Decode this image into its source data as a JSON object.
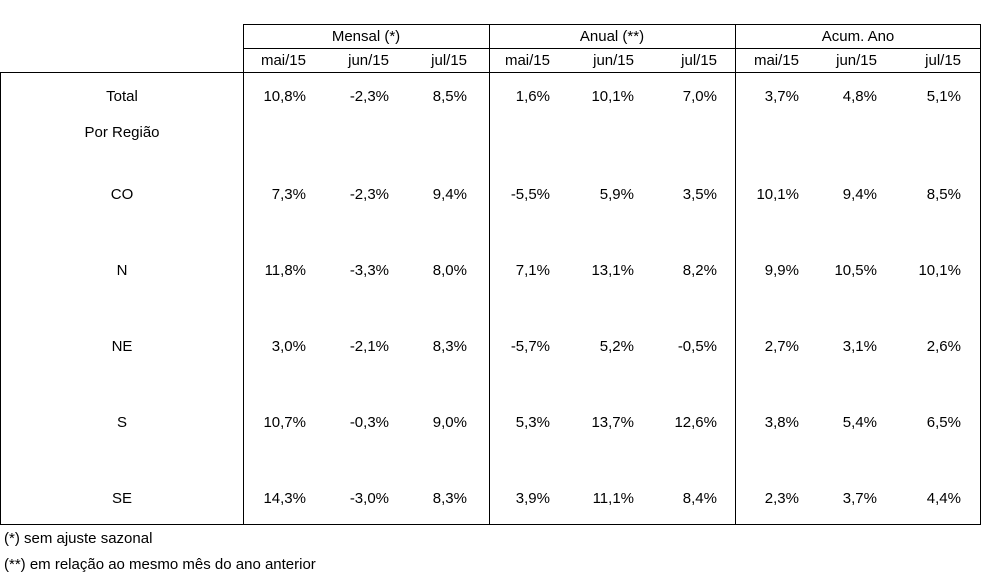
{
  "groups": [
    {
      "label": "Mensal (*)",
      "months": [
        "mai/15",
        "jun/15",
        "jul/15"
      ]
    },
    {
      "label": "Anual (**)",
      "months": [
        "mai/15",
        "jun/15",
        "jul/15"
      ]
    },
    {
      "label": "Acum. Ano",
      "months": [
        "mai/15",
        "jun/15",
        "jul/15"
      ]
    }
  ],
  "section_label": "Por Região",
  "rows": [
    {
      "label": "Total",
      "values": [
        "10,8%",
        "-2,3%",
        "8,5%",
        "1,6%",
        "10,1%",
        "7,0%",
        "3,7%",
        "4,8%",
        "5,1%"
      ]
    },
    {
      "label": "CO",
      "values": [
        "7,3%",
        "-2,3%",
        "9,4%",
        "-5,5%",
        "5,9%",
        "3,5%",
        "10,1%",
        "9,4%",
        "8,5%"
      ]
    },
    {
      "label": "N",
      "values": [
        "11,8%",
        "-3,3%",
        "8,0%",
        "7,1%",
        "13,1%",
        "8,2%",
        "9,9%",
        "10,5%",
        "10,1%"
      ]
    },
    {
      "label": "NE",
      "values": [
        "3,0%",
        "-2,1%",
        "8,3%",
        "-5,7%",
        "5,2%",
        "-0,5%",
        "2,7%",
        "3,1%",
        "2,6%"
      ]
    },
    {
      "label": "S",
      "values": [
        "10,7%",
        "-0,3%",
        "9,0%",
        "5,3%",
        "13,7%",
        "12,6%",
        "3,8%",
        "5,4%",
        "6,5%"
      ]
    },
    {
      "label": "SE",
      "values": [
        "14,3%",
        "-3,0%",
        "8,3%",
        "3,9%",
        "11,1%",
        "8,4%",
        "2,3%",
        "3,7%",
        "4,4%"
      ]
    }
  ],
  "footnotes": [
    "(*) sem ajuste sazonal",
    "(**) em relação ao mesmo mês do ano anterior"
  ]
}
